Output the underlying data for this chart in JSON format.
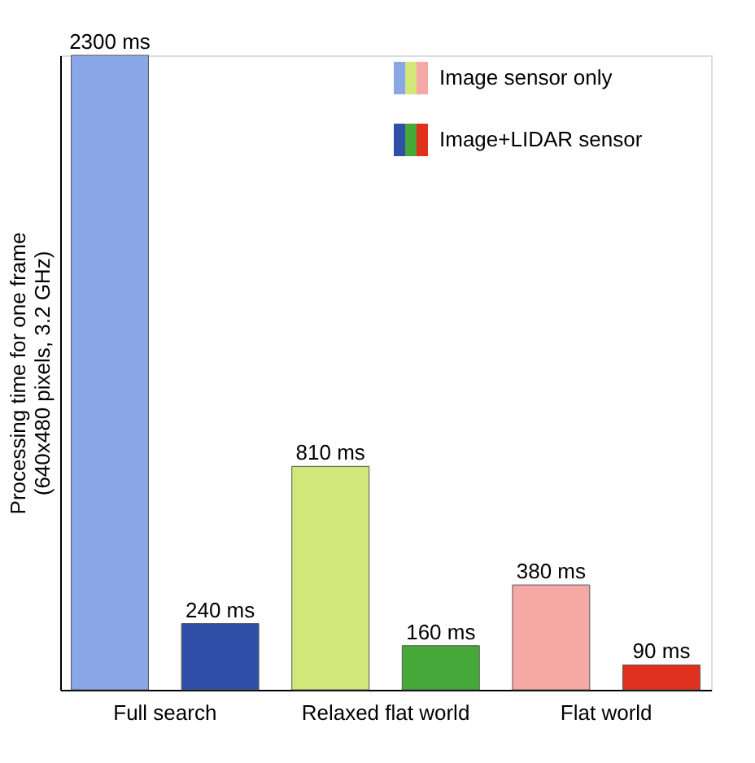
{
  "chart_data": {
    "type": "bar",
    "ylabel": "Processing time for one frame\n(640x480 pixels, 3.2 GHz)",
    "categories": [
      "Full search",
      "Relaxed flat world",
      "Flat world"
    ],
    "legend": "top right",
    "grid": false,
    "series": [
      {
        "name": "Image sensor only",
        "colors": [
          "#8aa6e6",
          "#d2e67a",
          "#f6a8a4"
        ],
        "values": [
          2300,
          810,
          380
        ],
        "value_labels": [
          "2300 ms",
          "810 ms",
          "380 ms"
        ]
      },
      {
        "name": "Image+LIDAR sensor",
        "colors": [
          "#2f4fa8",
          "#45a838",
          "#e0301e"
        ],
        "values": [
          240,
          160,
          90
        ],
        "value_labels": [
          "240 ms",
          "160 ms",
          "90 ms"
        ]
      }
    ]
  }
}
